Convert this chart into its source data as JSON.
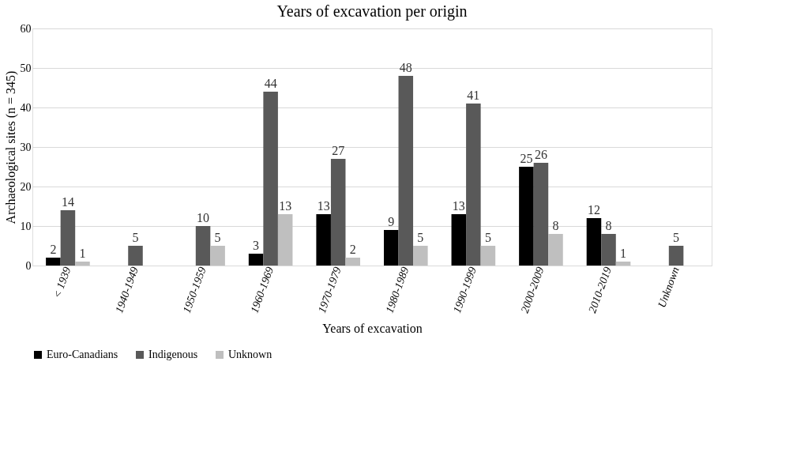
{
  "chart_data": {
    "type": "bar",
    "title": "Years of excavation per origin",
    "xlabel": "Years of excavation",
    "ylabel": "Archaeological sites (n = 345)",
    "categories": [
      "< 1939",
      "1940-1949",
      "1950-1959",
      "1960-1969",
      "1970-1979",
      "1980-1989",
      "1990-1999",
      "2000-2009",
      "2010-2019",
      "Unknown"
    ],
    "series": [
      {
        "name": "Euro-Canadians",
        "color": "#000000",
        "values": [
          2,
          null,
          null,
          3,
          13,
          9,
          13,
          25,
          12,
          null
        ]
      },
      {
        "name": "Indigenous",
        "color": "#595959",
        "values": [
          14,
          5,
          10,
          44,
          27,
          48,
          41,
          26,
          8,
          5
        ]
      },
      {
        "name": "Unknown",
        "color": "#bfbfbf",
        "values": [
          1,
          null,
          5,
          13,
          2,
          5,
          5,
          8,
          1,
          null
        ]
      }
    ],
    "ylim": [
      0,
      60
    ],
    "yticks": [
      0,
      10,
      20,
      30,
      40,
      50,
      60
    ],
    "grid": "y",
    "legend": "bottom",
    "data_labels": true
  }
}
